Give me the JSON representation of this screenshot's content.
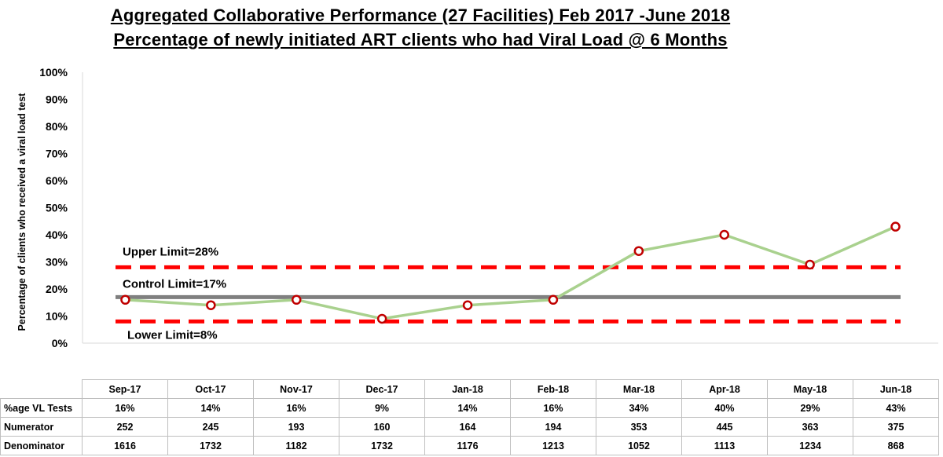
{
  "title_lines": [
    "Aggregated Collaborative Performance (27 Facilities) Feb 2017 -June 2018",
    "Percentage of newly initiated ART clients who had Viral Load @ 6 Months"
  ],
  "chart_data": {
    "type": "line",
    "title": "Aggregated Collaborative Performance (27 Facilities) Feb 2017 -June 2018",
    "subtitle": "Percentage of newly initiated ART clients who had Viral Load @ 6 Months",
    "ylabel": "Percentage of clients who received a viral load test",
    "xlabel": "",
    "ylim": [
      0,
      100
    ],
    "y_ticks": [
      "0%",
      "10%",
      "20%",
      "30%",
      "40%",
      "50%",
      "60%",
      "70%",
      "80%",
      "90%",
      "100%"
    ],
    "y_tick_values": [
      0,
      10,
      20,
      30,
      40,
      50,
      60,
      70,
      80,
      90,
      100
    ],
    "categories": [
      "Sep-17",
      "Oct-17",
      "Nov-17",
      "Dec-17",
      "Jan-18",
      "Feb-18",
      "Mar-18",
      "Apr-18",
      "May-18",
      "Jun-18"
    ],
    "series": [
      {
        "values": [
          16,
          14,
          16,
          9,
          14,
          16,
          34,
          40,
          29,
          43
        ],
        "color": "#a9d18e",
        "marker_color": "#c00000"
      }
    ],
    "reference_lines": [
      {
        "label": "Upper Limit=28%",
        "value": 28,
        "style": "dashed",
        "color": "#ff0000"
      },
      {
        "label": "Control Limit=17%",
        "value": 17,
        "style": "solid",
        "color": "#7f7f7f"
      },
      {
        "label": "Lower Limit=8%",
        "value": 8,
        "style": "dashed",
        "color": "#ff0000"
      }
    ],
    "grid": false,
    "legend": "none"
  },
  "table": {
    "rows": [
      {
        "label": "%age VL Tests",
        "values": [
          "16%",
          "14%",
          "16%",
          "9%",
          "14%",
          "16%",
          "34%",
          "40%",
          "29%",
          "43%"
        ]
      },
      {
        "label": "Numerator",
        "values": [
          "252",
          "245",
          "193",
          "160",
          "164",
          "194",
          "353",
          "445",
          "363",
          "375"
        ]
      },
      {
        "label": "Denominator",
        "values": [
          "1616",
          "1732",
          "1182",
          "1732",
          "1176",
          "1213",
          "1052",
          "1113",
          "1234",
          "868"
        ]
      }
    ]
  }
}
